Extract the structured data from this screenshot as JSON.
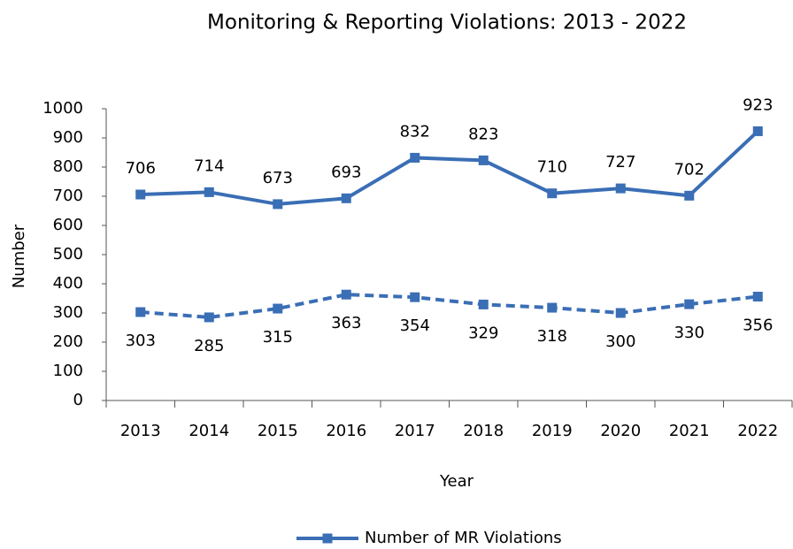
{
  "chart_data": {
    "type": "line",
    "title": "Monitoring & Reporting Violations: 2013 - 2022",
    "xlabel": "Year",
    "ylabel": "Number",
    "categories": [
      "2013",
      "2014",
      "2015",
      "2016",
      "2017",
      "2018",
      "2019",
      "2020",
      "2021",
      "2022"
    ],
    "series": [
      {
        "name": "Number of MR Violations",
        "color": "#3a6eb5",
        "dashed": false,
        "label_position": "above",
        "values": [
          706,
          714,
          673,
          693,
          832,
          823,
          710,
          727,
          702,
          923
        ]
      },
      {
        "color": "#3a6eb5",
        "dashed": true,
        "label_position": "below",
        "values": [
          303,
          285,
          315,
          363,
          354,
          329,
          318,
          300,
          330,
          356
        ]
      }
    ],
    "ylim": [
      0,
      1000
    ],
    "yticks": [
      0,
      100,
      200,
      300,
      400,
      500,
      600,
      700,
      800,
      900,
      1000
    ],
    "grid": false,
    "legend": "bottom"
  }
}
